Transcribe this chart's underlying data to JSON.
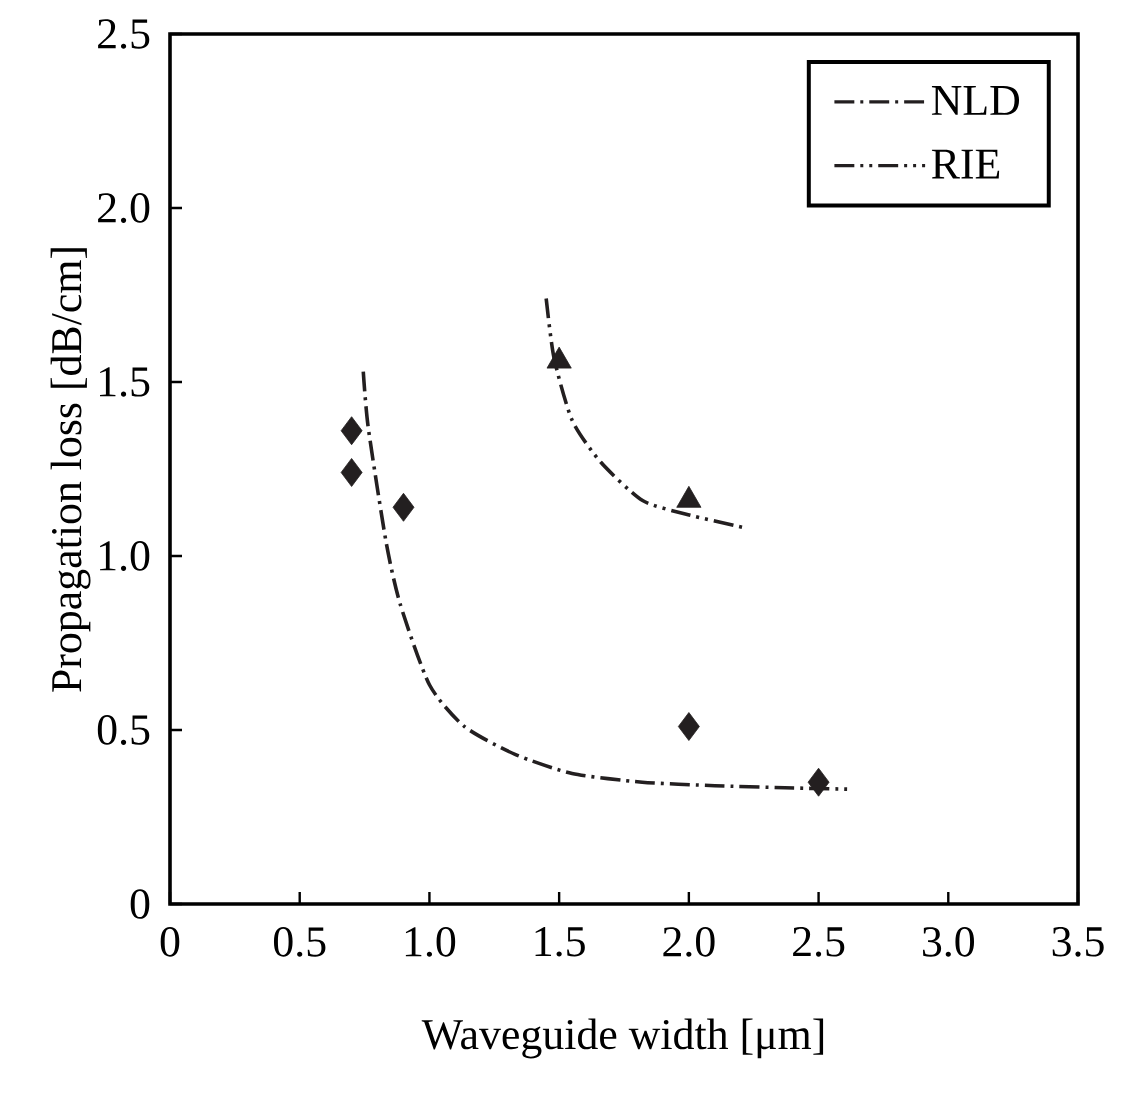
{
  "chart_data": {
    "type": "line",
    "xlabel": "Waveguide width [μm]",
    "ylabel": "Propagation loss [dB/cm]",
    "xlim": [
      0,
      3.5
    ],
    "xticks": [
      0,
      {
        "value": 0.5,
        "label": "0.5"
      },
      {
        "value": 1.0,
        "label": "1.0"
      },
      {
        "value": 1.5,
        "label": "1.5"
      },
      {
        "value": 2.0,
        "label": "2.0"
      },
      {
        "value": 2.5,
        "label": "2.5"
      },
      {
        "value": 3.0,
        "label": "3.0"
      },
      {
        "value": 3.5,
        "label": "3.5"
      }
    ],
    "ylim": [
      0,
      2.5
    ],
    "yticks": [
      0,
      {
        "value": 0.5,
        "label": "0.5"
      },
      {
        "value": 1.0,
        "label": "1.0"
      },
      {
        "value": 1.5,
        "label": "1.5"
      },
      {
        "value": 2.0,
        "label": "2.0"
      },
      {
        "value": 2.5,
        "label": "2.5"
      }
    ],
    "grid": false,
    "legend": "top right",
    "series": [
      {
        "name": "NLD",
        "color": "#231f20",
        "line_style": "dash-dot",
        "marker": "none",
        "x": [
          0.745,
          0.764,
          0.833,
          0.888,
          1.0,
          1.135,
          1.33,
          1.55,
          1.82,
          2.1,
          2.37,
          2.61
        ],
        "values": [
          1.53,
          1.37,
          1.04,
          0.86,
          0.63,
          0.51,
          0.43,
          0.375,
          0.35,
          0.34,
          0.334,
          0.33
        ]
      },
      {
        "name": "RIE",
        "color": "#231f20",
        "line_style": "dash-dot-dot",
        "marker": "none",
        "x": [
          1.45,
          1.48,
          1.55,
          1.66,
          1.82,
          1.99,
          2.22
        ],
        "values": [
          1.74,
          1.57,
          1.39,
          1.27,
          1.16,
          1.12,
          1.08
        ]
      },
      {
        "type": "scatter",
        "color": "#231f20",
        "marker": "diamond",
        "x": [
          0.7,
          0.7,
          0.9,
          2.0,
          2.5
        ],
        "values": [
          1.36,
          1.24,
          1.14,
          0.51,
          0.35
        ]
      },
      {
        "type": "scatter",
        "color": "#231f20",
        "marker": "triangle",
        "x": [
          1.5,
          2.0
        ],
        "values": [
          1.56,
          1.16
        ]
      }
    ]
  }
}
